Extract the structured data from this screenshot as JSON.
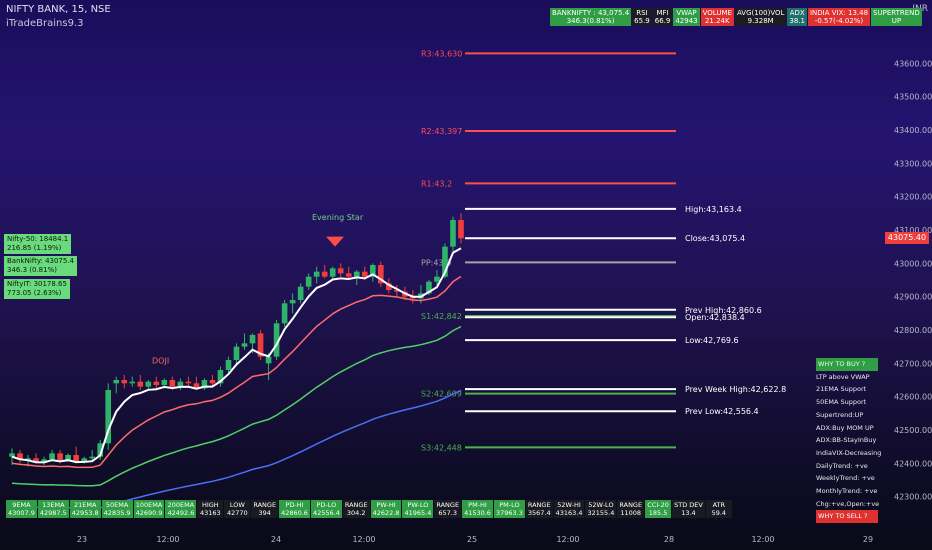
{
  "header": {
    "symbol": "NIFTY BANK, 15, NSE",
    "indicator": "iTradeBrains9.3",
    "currency": "INR"
  },
  "top_stats": [
    {
      "l1": "BANKNIFTY : 43,075.4",
      "l2": "346.3(0.81%)",
      "color": "green"
    },
    {
      "l1": "RSI",
      "l2": "65.9",
      "color": "dark"
    },
    {
      "l1": "MFI",
      "l2": "66.9",
      "color": "dark"
    },
    {
      "l1": "VWAP",
      "l2": "42943",
      "color": "green"
    },
    {
      "l1": "VOLUME",
      "l2": "21.24K",
      "color": "red"
    },
    {
      "l1": "AVG(100)VOL",
      "l2": "9.328M",
      "color": "dark"
    },
    {
      "l1": "ADX",
      "l2": "38.1",
      "color": "teal"
    },
    {
      "l1": "INDIA VIX: 13.48",
      "l2": "-0.57(-4.02%)",
      "color": "red"
    },
    {
      "l1": "SUPERTREND",
      "l2": "UP",
      "color": "green"
    }
  ],
  "left_boxes": [
    {
      "l1": "Nifty-50: 18484.1",
      "l2": "216.85 (1.19%)"
    },
    {
      "l1": "BankNifty: 43075.4",
      "l2": "346.3 (0.81%)"
    },
    {
      "l1": "NiftyIT: 30178.65",
      "l2": "773.05 (2.63%)"
    }
  ],
  "bottom_stats": [
    {
      "l1": "9EMA",
      "l2": "43007.9",
      "color": "green"
    },
    {
      "l1": "13EMA",
      "l2": "42987.5",
      "color": "green"
    },
    {
      "l1": "21EMA",
      "l2": "42953.8",
      "color": "green"
    },
    {
      "l1": "50EMA",
      "l2": "42835.9",
      "color": "green"
    },
    {
      "l1": "100EMA",
      "l2": "42690.9",
      "color": "green"
    },
    {
      "l1": "200EMA",
      "l2": "42492.6",
      "color": "green"
    },
    {
      "l1": "HIGH",
      "l2": "43163",
      "color": "dark"
    },
    {
      "l1": "LOW",
      "l2": "42770",
      "color": "dark"
    },
    {
      "l1": "RANGE",
      "l2": "394",
      "color": "dark"
    },
    {
      "l1": "PD-HI",
      "l2": "42860.6",
      "color": "green"
    },
    {
      "l1": "PD-LO",
      "l2": "42556.4",
      "color": "green"
    },
    {
      "l1": "RANGE",
      "l2": "304.2",
      "color": "dark"
    },
    {
      "l1": "PW-HI",
      "l2": "42622.8",
      "color": "green"
    },
    {
      "l1": "PW-LO",
      "l2": "41965.4",
      "color": "green"
    },
    {
      "l1": "RANGE",
      "l2": "657.3",
      "color": "dark"
    },
    {
      "l1": "PM-HI",
      "l2": "41530.6",
      "color": "green"
    },
    {
      "l1": "PM-LO",
      "l2": "37963.3",
      "color": "green"
    },
    {
      "l1": "RANGE",
      "l2": "3567.4",
      "color": "dark"
    },
    {
      "l1": "52W-HI",
      "l2": "43163.4",
      "color": "dark"
    },
    {
      "l1": "52W-LO",
      "l2": "32155.4",
      "color": "dark"
    },
    {
      "l1": "RANGE",
      "l2": "11008",
      "color": "dark"
    },
    {
      "l1": "CCI-20",
      "l2": "185.5",
      "color": "green"
    },
    {
      "l1": "STD DEV",
      "l2": "13.4",
      "color": "dark"
    },
    {
      "l1": "ATR",
      "l2": "59.4",
      "color": "dark"
    }
  ],
  "right_list": [
    {
      "text": "WHY TO BUY ?",
      "style": "boxg"
    },
    {
      "text": "LTP above VWAP",
      "style": ""
    },
    {
      "text": "21EMA Support",
      "style": ""
    },
    {
      "text": "50EMA Support",
      "style": ""
    },
    {
      "text": "Supertrend:UP",
      "style": ""
    },
    {
      "text": "ADX:Buy MOM UP",
      "style": ""
    },
    {
      "text": "ADX:BB-StayInBuy",
      "style": ""
    },
    {
      "text": "IndiaVIX-Decreasing",
      "style": ""
    },
    {
      "text": "DailyTrend: +ve",
      "style": ""
    },
    {
      "text": "WeeklyTrend: +ve",
      "style": ""
    },
    {
      "text": "MonthlyTrend: +ve",
      "style": ""
    },
    {
      "text": "Chg:+ve,Open:+ve",
      "style": ""
    },
    {
      "text": "WHY TO SELL ?",
      "style": "boxr"
    }
  ],
  "chart_data": {
    "type": "candlestick",
    "y_axis_ticks": [
      42300,
      42400,
      42500,
      42600,
      42700,
      42800,
      42900,
      43000,
      43100,
      43200,
      43300,
      43400,
      43500,
      43600
    ],
    "ylim": [
      42230,
      43700
    ],
    "x_axis_labels": [
      "23",
      "12:00",
      "24",
      "12:00",
      "25",
      "12:00",
      "28",
      "12:00",
      "29"
    ],
    "last_price": "43075.40",
    "annotations": {
      "evening_star": "Evening Star",
      "doji": "DOJI"
    },
    "levels": [
      {
        "label": "R3:43,630",
        "value": 43630,
        "color": "#ff4d4d"
      },
      {
        "label": "R2:43,397",
        "value": 43397,
        "color": "#ff4d4d"
      },
      {
        "label": "R1:43,2",
        "value": 43240,
        "color": "#ff4d4d"
      },
      {
        "label": "PP:43,0",
        "value": 43003,
        "color": "#a5a5a5"
      },
      {
        "label": "S1:42,842",
        "value": 42842,
        "color": "#4caf50"
      },
      {
        "label": "S2:42,609",
        "value": 42609,
        "color": "#4caf50"
      },
      {
        "label": "S3:42,448",
        "value": 42448,
        "color": "#4caf50"
      }
    ],
    "white_levels": [
      {
        "label": "High:43,163.4",
        "value": 43163.4
      },
      {
        "label": "Close:43,075.4",
        "value": 43075.4
      },
      {
        "label": "Prev High:42,860.6",
        "value": 42860.6
      },
      {
        "label": "Open:42,838.4",
        "value": 42838.4
      },
      {
        "label": "Low:42,769.6",
        "value": 42769.6
      },
      {
        "label": "Prev Week High:42,622.8",
        "value": 42622.8
      },
      {
        "label": "Prev Low:42,556.4",
        "value": 42556.4
      }
    ],
    "candles": [
      [
        42420,
        42445,
        42395,
        42430
      ],
      [
        42430,
        42440,
        42400,
        42410
      ],
      [
        42410,
        42425,
        42390,
        42415
      ],
      [
        42415,
        42430,
        42400,
        42405
      ],
      [
        42405,
        42420,
        42395,
        42412
      ],
      [
        42412,
        42440,
        42405,
        42430
      ],
      [
        42430,
        42440,
        42400,
        42410
      ],
      [
        42410,
        42430,
        42405,
        42425
      ],
      [
        42425,
        42450,
        42400,
        42405
      ],
      [
        42405,
        42420,
        42400,
        42415
      ],
      [
        42415,
        42440,
        42405,
        42420
      ],
      [
        42420,
        42470,
        42410,
        42460
      ],
      [
        42460,
        42640,
        42440,
        42620
      ],
      [
        42640,
        42660,
        42610,
        42650
      ],
      [
        42650,
        42665,
        42625,
        42640
      ],
      [
        42640,
        42660,
        42630,
        42645
      ],
      [
        42645,
        42665,
        42620,
        42630
      ],
      [
        42630,
        42650,
        42620,
        42645
      ],
      [
        42645,
        42660,
        42625,
        42635
      ],
      [
        42635,
        42655,
        42625,
        42650
      ],
      [
        42650,
        42660,
        42620,
        42630
      ],
      [
        42630,
        42655,
        42620,
        42645
      ],
      [
        42645,
        42660,
        42630,
        42640
      ],
      [
        42640,
        42660,
        42620,
        42625
      ],
      [
        42625,
        42655,
        42620,
        42650
      ],
      [
        42650,
        42665,
        42630,
        42640
      ],
      [
        42640,
        42690,
        42630,
        42680
      ],
      [
        42680,
        42720,
        42665,
        42710
      ],
      [
        42710,
        42760,
        42700,
        42750
      ],
      [
        42750,
        42790,
        42740,
        42760
      ],
      [
        42760,
        42790,
        42730,
        42785
      ],
      [
        42790,
        42800,
        42710,
        42720
      ],
      [
        42700,
        42730,
        42650,
        42720
      ],
      [
        42720,
        42830,
        42710,
        42820
      ],
      [
        42820,
        42890,
        42810,
        42880
      ],
      [
        42880,
        42910,
        42850,
        42890
      ],
      [
        42890,
        42940,
        42880,
        42930
      ],
      [
        42930,
        42970,
        42920,
        42960
      ],
      [
        42960,
        42990,
        42940,
        42975
      ],
      [
        42975,
        42995,
        42955,
        42960
      ],
      [
        42960,
        42990,
        42950,
        42985
      ],
      [
        42985,
        43000,
        42960,
        42970
      ],
      [
        42970,
        42990,
        42950,
        42960
      ],
      [
        42960,
        42980,
        42935,
        42975
      ],
      [
        42975,
        42990,
        42950,
        42960
      ],
      [
        42960,
        43000,
        42945,
        42995
      ],
      [
        42995,
        43005,
        42930,
        42940
      ],
      [
        42940,
        42955,
        42910,
        42920
      ],
      [
        42920,
        42935,
        42900,
        42915
      ],
      [
        42915,
        42930,
        42890,
        42900
      ],
      [
        42900,
        42920,
        42880,
        42895
      ],
      [
        42895,
        42935,
        42880,
        42910
      ],
      [
        42910,
        42950,
        42905,
        42945
      ],
      [
        42945,
        42980,
        42935,
        42960
      ],
      [
        42960,
        43060,
        42955,
        43050
      ],
      [
        43050,
        43140,
        43035,
        43130
      ],
      [
        43130,
        43150,
        43060,
        43075
      ]
    ]
  }
}
